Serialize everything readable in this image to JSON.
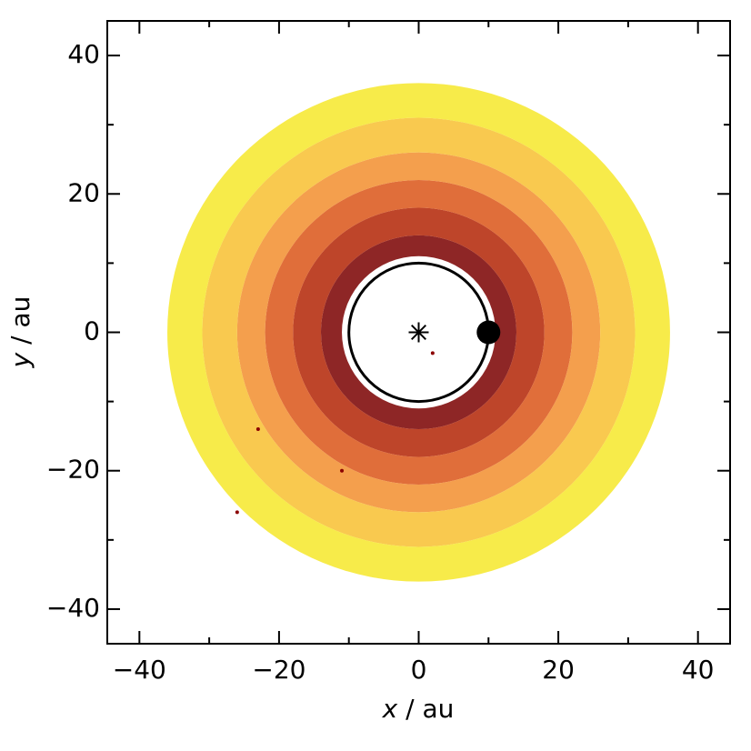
{
  "chart_data": {
    "type": "disk",
    "xlabel_symbol": "x",
    "xlabel_unit": "/ au",
    "ylabel_symbol": "y",
    "ylabel_unit": "/ au",
    "xlim": [
      -44.6,
      44.6
    ],
    "ylim": [
      -45,
      45
    ],
    "xticks": [
      -40,
      -20,
      0,
      20,
      40
    ],
    "yticks": [
      -40,
      -20,
      0,
      20,
      40
    ],
    "xminor": [
      -30,
      -10,
      10,
      30
    ],
    "yminor": [
      -30,
      -10,
      10,
      30
    ],
    "bands": [
      {
        "r_inner": 11,
        "r_outer": 14,
        "color": "#7a0000"
      },
      {
        "r_inner": 14,
        "r_outer": 18,
        "color": "#b32405"
      },
      {
        "r_inner": 18,
        "r_outer": 22,
        "color": "#da5518"
      },
      {
        "r_inner": 22,
        "r_outer": 26,
        "color": "#f28e2e"
      },
      {
        "r_inner": 26,
        "r_outer": 31,
        "color": "#f8c030"
      },
      {
        "r_inner": 31,
        "r_outer": 36,
        "color": "#f6e82a"
      }
    ],
    "outliers": {
      "x": [
        2,
        -23,
        -11,
        -26
      ],
      "y": [
        -3,
        -14,
        -20,
        -26
      ],
      "color": "#8b0000"
    },
    "orbit": {
      "radius": 10,
      "color": "#000000"
    },
    "star": {
      "x": 0,
      "y": 0
    },
    "planet": {
      "x": 10,
      "y": 0,
      "color": "#000000"
    }
  }
}
